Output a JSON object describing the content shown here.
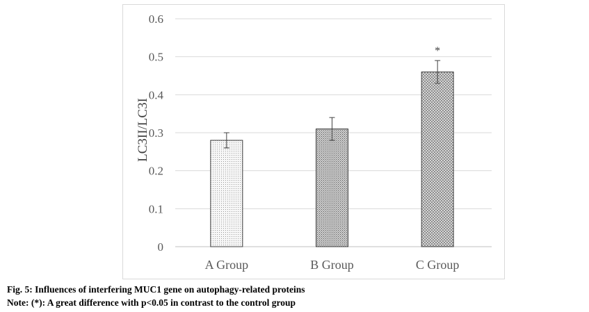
{
  "chart_data": {
    "type": "bar",
    "ylabel": "LC3II/LC3I",
    "xlabel": "",
    "ylim": [
      0,
      0.6
    ],
    "yticks": [
      0,
      0.1,
      0.2,
      0.3,
      0.4,
      0.5,
      0.6
    ],
    "ytick_labels": [
      "0",
      "0.1",
      "0.2",
      "0.3",
      "0.4",
      "0.5",
      "0.6"
    ],
    "categories": [
      "A Group",
      "B Group",
      "C Group"
    ],
    "values": [
      0.28,
      0.31,
      0.46
    ],
    "error": [
      0.02,
      0.03,
      0.03
    ],
    "annotations": [
      "",
      "",
      "*"
    ],
    "grid": "horizontal",
    "bar_fills": [
      "#ececec",
      "#bdbdbd",
      "#cfcfcf"
    ],
    "legend": "none"
  },
  "caption": {
    "figure": "Fig. 5: Influences of interfering MUC1 gene on autophagy-related proteins",
    "note": "Note: (*): A great difference with p<0.05 in contrast to the control group"
  }
}
